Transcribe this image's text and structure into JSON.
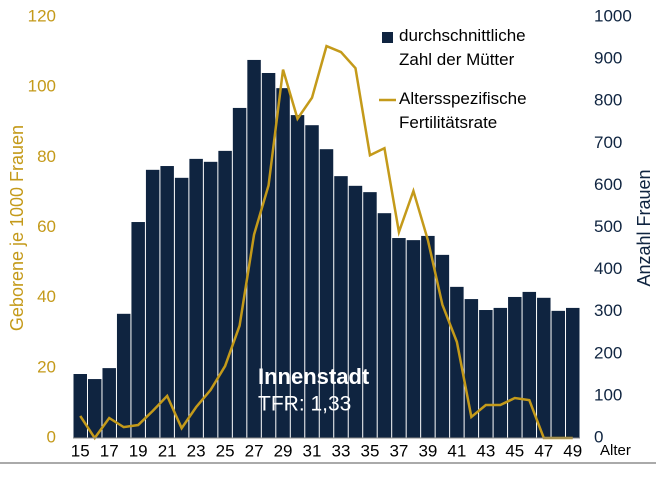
{
  "chart_data": {
    "type": "bar-line",
    "categories": [
      "15",
      null,
      "17",
      null,
      "19",
      null,
      "21",
      null,
      "23",
      null,
      "25",
      null,
      "27",
      null,
      "29",
      null,
      "31",
      null,
      "33",
      null,
      "35",
      null,
      "37",
      null,
      "39",
      null,
      "41",
      null,
      "43",
      null,
      "45",
      null,
      "47",
      null,
      "49"
    ],
    "xlabel": "Alter",
    "ylabel": "Geborene je 1000 Frauen",
    "y2label": "Anzahl Frauen",
    "ylim": [
      0,
      120
    ],
    "yticks": [
      0,
      20,
      40,
      60,
      80,
      100,
      120
    ],
    "y2lim": [
      0,
      1000
    ],
    "y2ticks": [
      0,
      100,
      200,
      300,
      400,
      500,
      600,
      700,
      800,
      900,
      1000
    ],
    "series": [
      {
        "name": "durchschnittliche Zahl der Mütter",
        "type": "bar",
        "axis": "y2",
        "color": "#0f2440",
        "values": [
          152,
          140,
          166,
          295,
          513,
          637,
          646,
          618,
          663,
          656,
          682,
          784,
          898,
          867,
          831,
          767,
          743,
          686,
          622,
          599,
          584,
          534,
          475,
          470,
          480,
          435,
          359,
          330,
          304,
          309,
          335,
          347,
          333,
          302,
          309
        ]
      },
      {
        "name": "Altersspezifische Fertilitätsrate",
        "type": "line",
        "axis": "y",
        "color": "#c49a1a",
        "values": [
          6.3,
          0,
          5.7,
          3.1,
          3.7,
          7.7,
          12,
          2.8,
          8.8,
          13.7,
          20.5,
          32,
          58,
          72,
          105,
          91,
          97,
          111.7,
          110,
          105.4,
          80.6,
          82.6,
          58.7,
          70.4,
          56.4,
          38,
          27.4,
          6,
          9.4,
          9.4,
          11.4,
          10.8,
          0,
          0,
          0
        ]
      }
    ],
    "annotations": [
      "Innenstadt",
      "TFR: 1,33"
    ],
    "legend": "top-right"
  }
}
